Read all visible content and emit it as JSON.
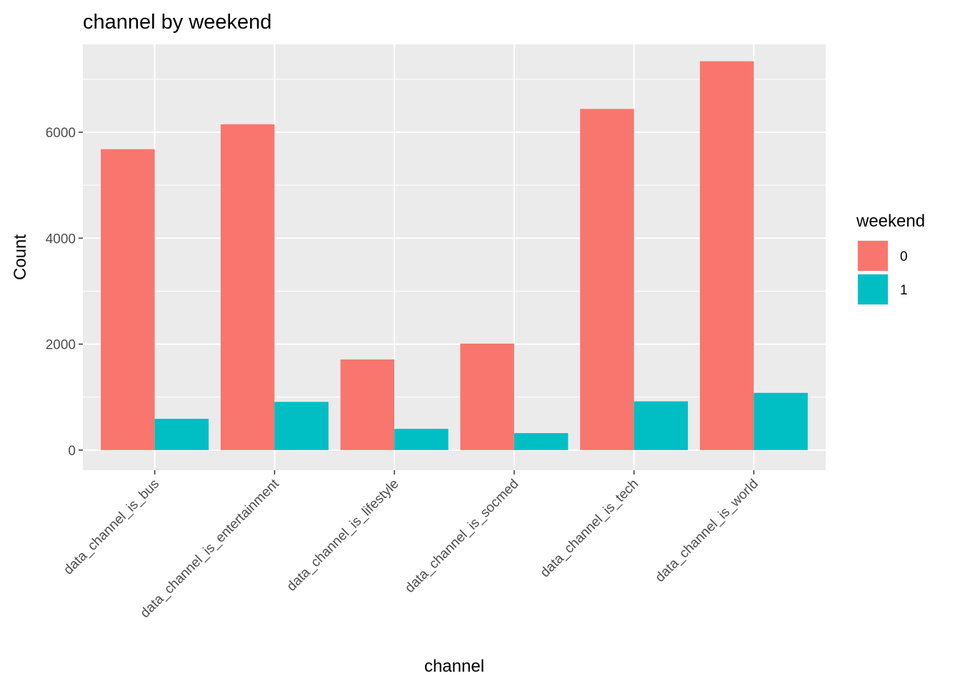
{
  "chart_data": {
    "type": "bar",
    "title": "channel by weekend",
    "xlabel": "channel",
    "ylabel": "Count",
    "categories": [
      "data_channel_is_bus",
      "data_channel_is_entertainment",
      "data_channel_is_lifestyle",
      "data_channel_is_socmed",
      "data_channel_is_tech",
      "data_channel_is_world"
    ],
    "series": [
      {
        "name": "0",
        "color": "#F8766D",
        "values": [
          5680,
          6150,
          1710,
          2010,
          6440,
          7340
        ]
      },
      {
        "name": "1",
        "color": "#00BFC4",
        "values": [
          590,
          910,
          400,
          320,
          920,
          1080
        ]
      }
    ],
    "ylim": [
      -380,
      7660
    ],
    "yticks": [
      0,
      2000,
      4000,
      6000
    ],
    "grid": true,
    "legend": {
      "title": "weekend",
      "position": "right"
    }
  }
}
